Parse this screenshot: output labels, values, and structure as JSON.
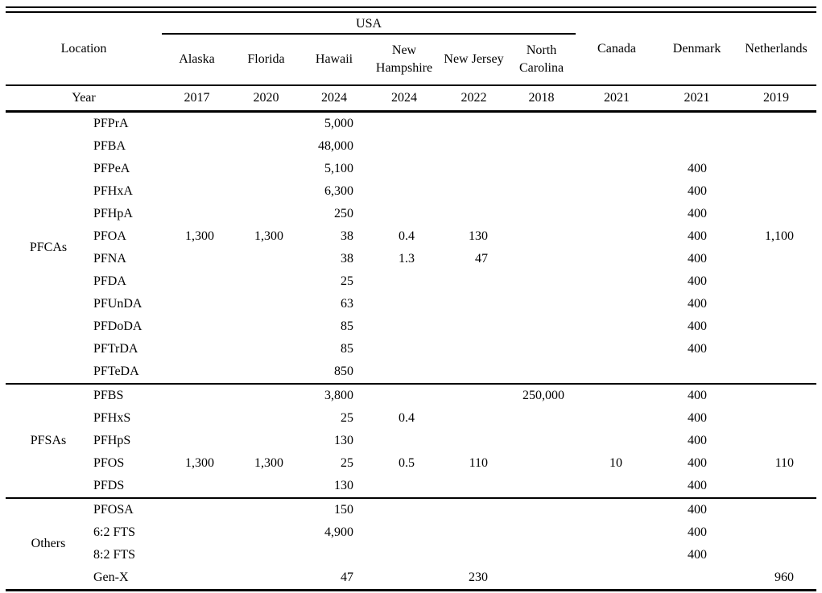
{
  "colors": {
    "text": "#000000",
    "background": "#ffffff",
    "rule": "#000000"
  },
  "table": {
    "header": {
      "location_label": "Location",
      "usa_label": "USA",
      "usa_states": [
        "Alaska",
        "Florida",
        "Hawaii",
        "New Hampshire",
        "New Jersey",
        "North Carolina"
      ],
      "other_countries": [
        "Canada",
        "Denmark",
        "Netherlands"
      ],
      "year_label": "Year",
      "years": [
        "2017",
        "2020",
        "2024",
        "2024",
        "2022",
        "2018",
        "2021",
        "2021",
        "2019"
      ]
    },
    "columns": [
      "Alaska",
      "Florida",
      "Hawaii",
      "New Hampshire",
      "New Jersey",
      "North Carolina",
      "Canada",
      "Denmark",
      "Netherlands"
    ],
    "groups": [
      {
        "name": "PFCAs",
        "rows": [
          {
            "compound": "PFPrA",
            "values": [
              "",
              "",
              "5,000",
              "",
              "",
              "",
              "",
              "",
              ""
            ]
          },
          {
            "compound": "PFBA",
            "values": [
              "",
              "",
              "48,000",
              "",
              "",
              "",
              "",
              "",
              ""
            ]
          },
          {
            "compound": "PFPeA",
            "values": [
              "",
              "",
              "5,100",
              "",
              "",
              "",
              "",
              "400",
              ""
            ]
          },
          {
            "compound": "PFHxA",
            "values": [
              "",
              "",
              "6,300",
              "",
              "",
              "",
              "",
              "400",
              ""
            ]
          },
          {
            "compound": "PFHpA",
            "values": [
              "",
              "",
              "250",
              "",
              "",
              "",
              "",
              "400",
              ""
            ]
          },
          {
            "compound": "PFOA",
            "values": [
              "1,300",
              "1,300",
              "38",
              "0.4",
              "130",
              "",
              "",
              "400",
              "1,100"
            ]
          },
          {
            "compound": "PFNA",
            "values": [
              "",
              "",
              "38",
              "1.3",
              "47",
              "",
              "",
              "400",
              ""
            ]
          },
          {
            "compound": "PFDA",
            "values": [
              "",
              "",
              "25",
              "",
              "",
              "",
              "",
              "400",
              ""
            ]
          },
          {
            "compound": "PFUnDA",
            "values": [
              "",
              "",
              "63",
              "",
              "",
              "",
              "",
              "400",
              ""
            ]
          },
          {
            "compound": "PFDoDA",
            "values": [
              "",
              "",
              "85",
              "",
              "",
              "",
              "",
              "400",
              ""
            ]
          },
          {
            "compound": "PFTrDA",
            "values": [
              "",
              "",
              "85",
              "",
              "",
              "",
              "",
              "400",
              ""
            ]
          },
          {
            "compound": "PFTeDA",
            "values": [
              "",
              "",
              "850",
              "",
              "",
              "",
              "",
              "",
              ""
            ]
          }
        ]
      },
      {
        "name": "PFSAs",
        "rows": [
          {
            "compound": "PFBS",
            "values": [
              "",
              "",
              "3,800",
              "",
              "",
              "250,000",
              "",
              "400",
              ""
            ]
          },
          {
            "compound": "PFHxS",
            "values": [
              "",
              "",
              "25",
              "0.4",
              "",
              "",
              "",
              "400",
              ""
            ]
          },
          {
            "compound": "PFHpS",
            "values": [
              "",
              "",
              "130",
              "",
              "",
              "",
              "",
              "400",
              ""
            ]
          },
          {
            "compound": "PFOS",
            "values": [
              "1,300",
              "1,300",
              "25",
              "0.5",
              "110",
              "",
              "10",
              "400",
              "110"
            ]
          },
          {
            "compound": "PFDS",
            "values": [
              "",
              "",
              "130",
              "",
              "",
              "",
              "",
              "400",
              ""
            ]
          }
        ]
      },
      {
        "name": "Others",
        "rows": [
          {
            "compound": "PFOSA",
            "values": [
              "",
              "",
              "150",
              "",
              "",
              "",
              "",
              "400",
              ""
            ]
          },
          {
            "compound": "6:2 FTS",
            "values": [
              "",
              "",
              "4,900",
              "",
              "",
              "",
              "",
              "400",
              ""
            ]
          },
          {
            "compound": "8:2 FTS",
            "values": [
              "",
              "",
              "",
              "",
              "",
              "",
              "",
              "400",
              ""
            ]
          },
          {
            "compound": "Gen-X",
            "values": [
              "",
              "",
              "47",
              "",
              "230",
              "",
              "",
              "",
              "960"
            ]
          }
        ]
      }
    ]
  }
}
